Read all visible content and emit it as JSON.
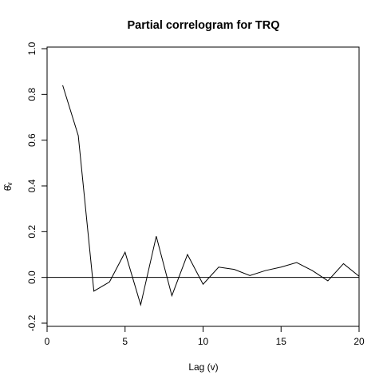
{
  "chart_data": {
    "type": "line",
    "title": "Partial correlogram for  TRQ",
    "xlabel": "Lag (v)",
    "ylabel": "θ̂ᵥ",
    "xlim": [
      0,
      20
    ],
    "ylim": [
      -0.2,
      1.0
    ],
    "x_ticks": [
      0,
      5,
      10,
      15,
      20
    ],
    "y_ticks": [
      -0.2,
      0.0,
      0.2,
      0.4,
      0.6,
      0.8,
      1.0
    ],
    "x_tick_labels": [
      "0",
      "5",
      "10",
      "15",
      "20"
    ],
    "y_tick_labels": [
      "-0.2",
      "0.0",
      "0.2",
      "0.4",
      "0.6",
      "0.8",
      "1.0"
    ],
    "reference_line_y": 0,
    "grid": false,
    "series": [
      {
        "x": [
          1,
          2,
          3,
          4,
          5,
          6,
          7,
          8,
          9,
          10,
          11,
          12,
          13,
          14,
          15,
          16,
          17,
          18,
          19,
          20
        ],
        "values": [
          0.84,
          0.62,
          -0.06,
          -0.02,
          0.11,
          -0.12,
          0.18,
          -0.08,
          0.1,
          -0.03,
          0.045,
          0.035,
          0.008,
          0.03,
          0.045,
          0.065,
          0.03,
          -0.015,
          0.06,
          0.005
        ],
        "color": "#000000"
      }
    ]
  }
}
